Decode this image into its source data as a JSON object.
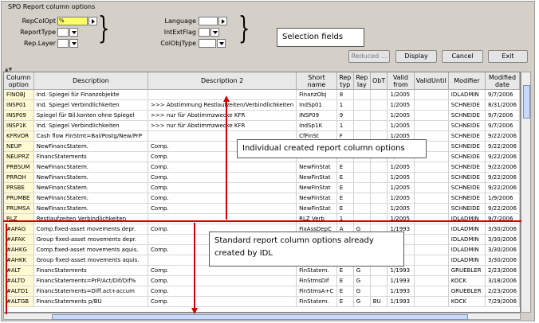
{
  "window": {
    "title": "SPO Report column options"
  },
  "selection": {
    "repcolopt_label": "RepColOpt",
    "repcolopt_value": "%",
    "reporttype_label": "ReportType",
    "replayer_label": "Rep.Layer",
    "language_label": "Language",
    "intextflag_label": "IntExtFlag",
    "colobjtype_label": "ColObjType"
  },
  "callouts": {
    "selection": "Selection fields",
    "individual": "Individual created report column options",
    "standard": "Standard report column options already created by IDL"
  },
  "buttons": {
    "reduced": "Reduced ...",
    "display": "Display",
    "cancel": "Cancel",
    "exit": "Exit"
  },
  "table": {
    "headers": [
      "Column option",
      "Description",
      "Description 2",
      "Short name",
      "Rep typ",
      "Rep lay",
      "ObT",
      "Valid from",
      "ValidUntil",
      "Modifier",
      "Modified date"
    ],
    "rows": [
      [
        "FINOBJ",
        "Ind. Spiegel für Finanzobjekte",
        "",
        "FinanzObj",
        "8",
        "",
        "",
        "1/2005",
        "",
        "IDLADMIN",
        "9/7/2006"
      ],
      [
        "INSP01",
        "Ind. Spiegel Verbindlichkeiten",
        ">>> Abstimmung Restlaufzeiten/Verbindlichkeiten",
        "IndSp01",
        "1",
        "",
        "",
        "1/2005",
        "",
        "SCHNEIDE",
        "8/31/2006"
      ],
      [
        "INSP09",
        "Spiegel für Bil.konten ohne Spiegel",
        ">>> nur für Abstimmzwecke KFR",
        "INSP09",
        "9",
        "",
        "",
        "1/2005",
        "",
        "SCHNEIDE",
        "9/7/2006"
      ],
      [
        "INSP1K",
        "Ind. Spiegel Verbindlichkeiten",
        ">>> nur für Abstimmzwecke KFR",
        "IndSp1K",
        "1",
        "",
        "",
        "1/2005",
        "",
        "SCHNEIDE",
        "9/7/2006"
      ],
      [
        "KFRVOR",
        "Cash flow FinStmt=Bal/Postg/New/PrP",
        "",
        "CfFinSt",
        "F",
        "",
        "",
        "1/2005",
        "",
        "SCHNEIDE",
        "9/22/2006"
      ],
      [
        "NEUP",
        "NewFinancStatem.",
        "Comp.",
        "",
        "",
        "",
        "",
        "1/2005",
        "",
        "SCHNEIDE",
        "9/22/2006"
      ],
      [
        "NEUPRZ",
        "FinancStatements",
        "Comp.",
        "",
        "",
        "",
        "",
        "1/2005",
        "",
        "SCHNEIDE",
        "9/22/2006"
      ],
      [
        "PRBSUM",
        "NewFinancStatem.",
        "Comp.",
        "NewFinStat",
        "E",
        "",
        "",
        "1/2005",
        "",
        "SCHNEIDE",
        "9/22/2006"
      ],
      [
        "PRROH",
        "NewFinancStatem.",
        "Comp.",
        "NewFinStat",
        "E",
        "",
        "",
        "1/2005",
        "",
        "SCHNEIDE",
        "9/22/2006"
      ],
      [
        "PRSBE",
        "NewFinancStatem.",
        "Comp.",
        "NewFinStat",
        "E",
        "",
        "",
        "1/2005",
        "",
        "SCHNEIDE",
        "9/22/2006"
      ],
      [
        "PRUMBE",
        "NewFinancStatem.",
        "Comp.",
        "NewFinStat",
        "E",
        "",
        "",
        "1/2005",
        "",
        "SCHNEIDE",
        "1/9/2006"
      ],
      [
        "PRUMSA",
        "NewFinancStatem.",
        "Comp.",
        "NewFinStat",
        "E",
        "",
        "",
        "1/2005",
        "",
        "SCHNEIDE",
        "9/22/2006"
      ],
      [
        "RLZ",
        "Restlaufzeiten Verbindlichkeiten",
        "",
        "RLZ Verb",
        "1",
        "",
        "",
        "1/2005",
        "",
        "IDLADMIN",
        "9/7/2006"
      ],
      [
        "#AFAG",
        "Comp.fixed-asset movements depr.",
        "Comp.",
        "FixAssDepC",
        "A",
        "G",
        "",
        "1/1993",
        "",
        "IDLADMIN",
        "3/30/2006"
      ],
      [
        "#AFAK",
        "Group fixed-asset movements depr.",
        "",
        "",
        "",
        "",
        "",
        "",
        "",
        "IDLADMIN",
        "3/30/2006"
      ],
      [
        "#AHKG",
        "Comp.fixed-asset movements aquis.",
        "Comp.",
        "",
        "",
        "",
        "",
        "",
        "",
        "IDLADMIN",
        "3/30/2006"
      ],
      [
        "#AHKK",
        "Group fixed-asset movements aquis.",
        "",
        "",
        "",
        "",
        "",
        "",
        "",
        "IDLADMIN",
        "3/30/2006"
      ],
      [
        "#ALT",
        "FinancStatements",
        "Comp.",
        "FinStatem.",
        "E",
        "G",
        "",
        "1/1993",
        "",
        "GRUEBLER",
        "2/23/2006"
      ],
      [
        "#ALTD",
        "FinancStatements=PrP/Act/Dif/Dif%",
        "Comp.",
        "FinStmsDif",
        "E",
        "G",
        "",
        "1/1993",
        "",
        "KOCK",
        "3/18/2006"
      ],
      [
        "#ALTD1",
        "FinancStatements=Diff.act+accum",
        "Comp.",
        "FinStmsA+C",
        "E",
        "G",
        "",
        "1/1993",
        "",
        "GRUEBLER",
        "2/23/2006"
      ],
      [
        "#ALTGB",
        "FinancStatements p/BU",
        "Comp.",
        "FinStatem.",
        "E",
        "G",
        "BU",
        "1/1993",
        "",
        "KOCK",
        "7/29/2006"
      ]
    ]
  }
}
